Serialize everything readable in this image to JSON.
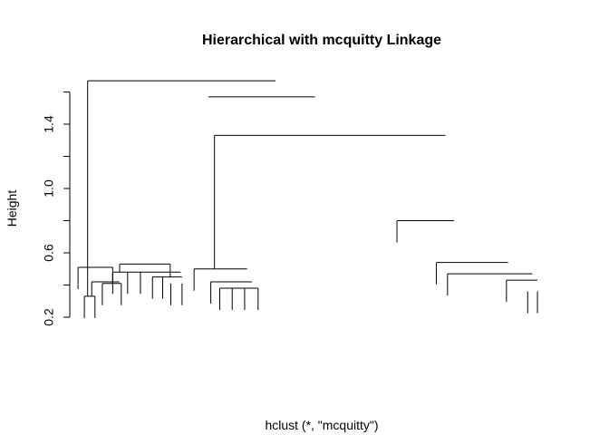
{
  "chart_data": {
    "type": "dendrogram",
    "title": "Hierarchical with mcquitty Linkage",
    "xlabel": "hclust (*, \"mcquitty\")",
    "ylabel": "Height",
    "yticks": [
      0.2,
      0.6,
      1.0,
      1.4
    ],
    "ylim": [
      0.15,
      1.75
    ],
    "n_leaves": 24,
    "links": [
      {
        "h": 1.67,
        "l": 1.52,
        "r": 10.73
      },
      {
        "h": 1.57,
        "l": 7.44,
        "r": 12.67
      },
      {
        "h": 1.33,
        "l": 7.74,
        "r": 19.06
      },
      {
        "h": 0.8,
        "l": 16.69,
        "r": 19.48
      },
      {
        "h": 0.54,
        "l": 18.62,
        "r": 22.14
      },
      {
        "h": 0.47,
        "l": 19.17,
        "r": 23.33
      },
      {
        "h": 0.43,
        "l": 22.06,
        "r": 23.58
      },
      {
        "h": 0.5,
        "l": 6.74,
        "r": 9.34
      },
      {
        "h": 0.42,
        "l": 7.56,
        "r": 9.58
      },
      {
        "h": 0.38,
        "l": 8.0,
        "r": 9.88
      },
      {
        "h": 0.53,
        "l": 3.09,
        "r": 5.57
      },
      {
        "h": 0.48,
        "l": 2.75,
        "r": 4.12
      },
      {
        "h": 0.48,
        "l": 4.11,
        "r": 6.08
      },
      {
        "h": 0.45,
        "l": 4.7,
        "r": 6.15
      },
      {
        "h": 0.51,
        "l": 1.05,
        "r": 2.75
      },
      {
        "h": 0.42,
        "l": 1.72,
        "r": 3.07
      },
      {
        "h": 0.41,
        "l": 2.24,
        "r": 3.17
      },
      {
        "h": 0.33,
        "l": 1.36,
        "r": 1.88
      }
    ],
    "leaves": [
      {
        "x": 1.05,
        "h": 0.51
      },
      {
        "x": 1.36,
        "h": 0.33
      },
      {
        "x": 1.88,
        "h": 0.33
      },
      {
        "x": 2.24,
        "h": 0.41
      },
      {
        "x": 3.17,
        "h": 0.41
      },
      {
        "x": 2.75,
        "h": 0.48
      },
      {
        "x": 3.48,
        "h": 0.48
      },
      {
        "x": 4.11,
        "h": 0.48
      },
      {
        "x": 4.7,
        "h": 0.45
      },
      {
        "x": 5.2,
        "h": 0.45
      },
      {
        "x": 5.6,
        "h": 0.41
      },
      {
        "x": 6.15,
        "h": 0.41
      },
      {
        "x": 6.74,
        "h": 0.5
      },
      {
        "x": 7.56,
        "h": 0.42
      },
      {
        "x": 8.0,
        "h": 0.38
      },
      {
        "x": 8.61,
        "h": 0.38
      },
      {
        "x": 9.22,
        "h": 0.38
      },
      {
        "x": 9.88,
        "h": 0.38
      },
      {
        "x": 16.69,
        "h": 0.8
      },
      {
        "x": 18.62,
        "h": 0.54
      },
      {
        "x": 19.17,
        "h": 0.47
      },
      {
        "x": 22.06,
        "h": 0.43
      },
      {
        "x": 23.1,
        "h": 0.36
      },
      {
        "x": 23.58,
        "h": 0.36
      }
    ]
  }
}
